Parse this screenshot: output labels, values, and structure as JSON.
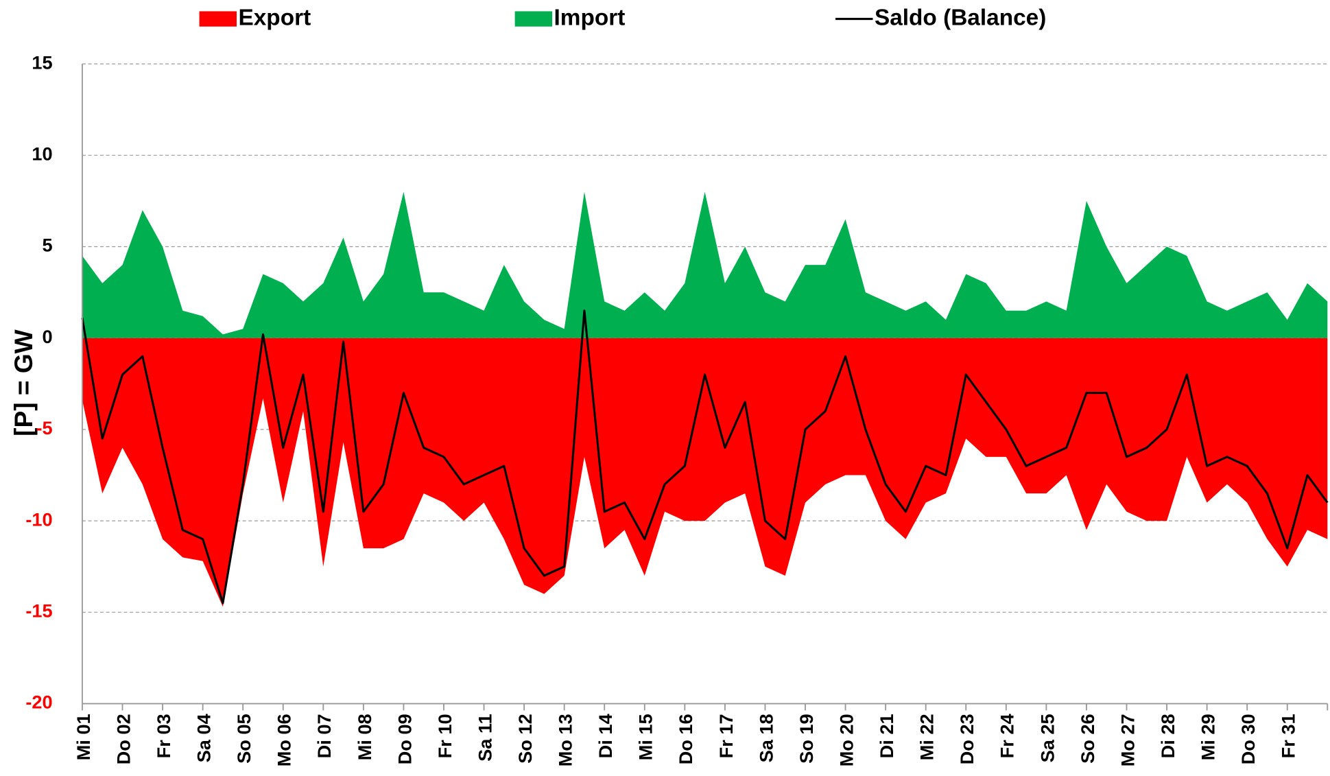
{
  "chart_data": {
    "type": "area",
    "y_label": "[P]  = GW",
    "x": [
      0,
      0.5,
      1,
      1.5,
      2,
      2.5,
      3,
      3.5,
      4,
      4.5,
      5,
      5.5,
      6,
      6.5,
      7,
      7.5,
      8,
      8.5,
      9,
      9.5,
      10,
      10.5,
      11,
      11.5,
      12,
      12.5,
      13,
      13.5,
      14,
      14.5,
      15,
      15.5,
      16,
      16.5,
      17,
      17.5,
      18,
      18.5,
      19,
      19.5,
      20,
      20.5,
      21,
      21.5,
      22,
      22.5,
      23,
      23.5,
      24,
      24.5,
      25,
      25.5,
      26,
      26.5,
      27,
      27.5,
      28,
      28.5,
      29,
      29.5,
      30,
      30.5,
      31
    ],
    "series": [
      {
        "name": "Export",
        "color": "#ff0000",
        "style": "area",
        "values": [
          -3.4,
          -8.5,
          -6,
          -8,
          -11,
          -12,
          -12.2,
          -14.7,
          -8.5,
          -3.3,
          -9,
          -4,
          -12.5,
          -5.7,
          -11.5,
          -11.5,
          -11,
          -8.5,
          -9,
          -10,
          -9,
          -11,
          -13.5,
          -14,
          -13,
          -6.5,
          -11.5,
          -10.5,
          -13,
          -9.5,
          -10,
          -10,
          -9,
          -8.5,
          -12.5,
          -13,
          -9,
          -8,
          -7.5,
          -7.5,
          -10,
          -11,
          -9,
          -8.5,
          -5.5,
          -6.5,
          -6.5,
          -8.5,
          -8.5,
          -7.5,
          -10.5,
          -8,
          -9.5,
          -10,
          -10,
          -6.5,
          -9,
          -8,
          -9,
          -11,
          -12.5,
          -10.5,
          -11
        ]
      },
      {
        "name": "Import",
        "color": "#00b050",
        "style": "area",
        "values": [
          4.5,
          3,
          4,
          7,
          5,
          1.5,
          1.2,
          0.2,
          0.5,
          3.5,
          3,
          2,
          3,
          5.5,
          2,
          3.5,
          8,
          2.5,
          2.5,
          2,
          1.5,
          4,
          2,
          1,
          0.5,
          8,
          2,
          1.5,
          2.5,
          1.5,
          3,
          8,
          3,
          5,
          2.5,
          2,
          4,
          4,
          6.5,
          2.5,
          2,
          1.5,
          2,
          1,
          3.5,
          3,
          1.5,
          1.5,
          2,
          1.5,
          7.5,
          5,
          3,
          4,
          5,
          4.5,
          2,
          1.5,
          2,
          2.5,
          1,
          3,
          2
        ]
      },
      {
        "name": "Saldo (Balance)",
        "color": "#000000",
        "style": "line",
        "values": [
          1.1,
          -5.5,
          -2,
          -1,
          -6,
          -10.5,
          -11,
          -14.5,
          -8,
          0.2,
          -6,
          -2,
          -9.5,
          -0.2,
          -9.5,
          -8,
          -3,
          -6,
          -6.5,
          -8,
          -7.5,
          -7,
          -11.5,
          -13,
          -12.5,
          1.5,
          -9.5,
          -9,
          -11,
          -8,
          -7,
          -2,
          -6,
          -3.5,
          -10,
          -11,
          -5,
          -4,
          -1,
          -5,
          -8,
          -9.5,
          -7,
          -7.5,
          -2,
          -3.5,
          -5,
          -7,
          -6.5,
          -6,
          -3,
          -3,
          -6.5,
          -6,
          -5,
          -2,
          -7,
          -6.5,
          -7,
          -8.5,
          -11.5,
          -7.5,
          -9
        ]
      }
    ],
    "xlim": [
      0,
      31
    ],
    "xticks": [
      {
        "value": 0,
        "label": "Mi 01"
      },
      {
        "value": 1,
        "label": "Do 02"
      },
      {
        "value": 2,
        "label": "Fr 03"
      },
      {
        "value": 3,
        "label": "Sa 04"
      },
      {
        "value": 4,
        "label": "So 05"
      },
      {
        "value": 5,
        "label": "Mo 06"
      },
      {
        "value": 6,
        "label": "Di 07"
      },
      {
        "value": 7,
        "label": "Mi 08"
      },
      {
        "value": 8,
        "label": "Do 09"
      },
      {
        "value": 9,
        "label": "Fr 10"
      },
      {
        "value": 10,
        "label": "Sa 11"
      },
      {
        "value": 11,
        "label": "So 12"
      },
      {
        "value": 12,
        "label": "Mo 13"
      },
      {
        "value": 13,
        "label": "Di 14"
      },
      {
        "value": 14,
        "label": "Mi 15"
      },
      {
        "value": 15,
        "label": "Do 16"
      },
      {
        "value": 16,
        "label": "Fr 17"
      },
      {
        "value": 17,
        "label": "Sa 18"
      },
      {
        "value": 18,
        "label": "So 19"
      },
      {
        "value": 19,
        "label": "Mo 20"
      },
      {
        "value": 20,
        "label": "Di 21"
      },
      {
        "value": 21,
        "label": "Mi 22"
      },
      {
        "value": 22,
        "label": "Do 23"
      },
      {
        "value": 23,
        "label": "Fr 24"
      },
      {
        "value": 24,
        "label": "Sa 25"
      },
      {
        "value": 25,
        "label": "So 26"
      },
      {
        "value": 26,
        "label": "Mo 27"
      },
      {
        "value": 27,
        "label": "Di 28"
      },
      {
        "value": 28,
        "label": "Mi 29"
      },
      {
        "value": 29,
        "label": "Do 30"
      },
      {
        "value": 30,
        "label": "Fr 31"
      }
    ],
    "ylim": [
      -20,
      15
    ],
    "yticks": [
      15,
      10,
      5,
      0,
      -5,
      -10,
      -15,
      -20
    ],
    "negative_tick_color": "#ff0000",
    "grid": true,
    "legend": "top"
  }
}
